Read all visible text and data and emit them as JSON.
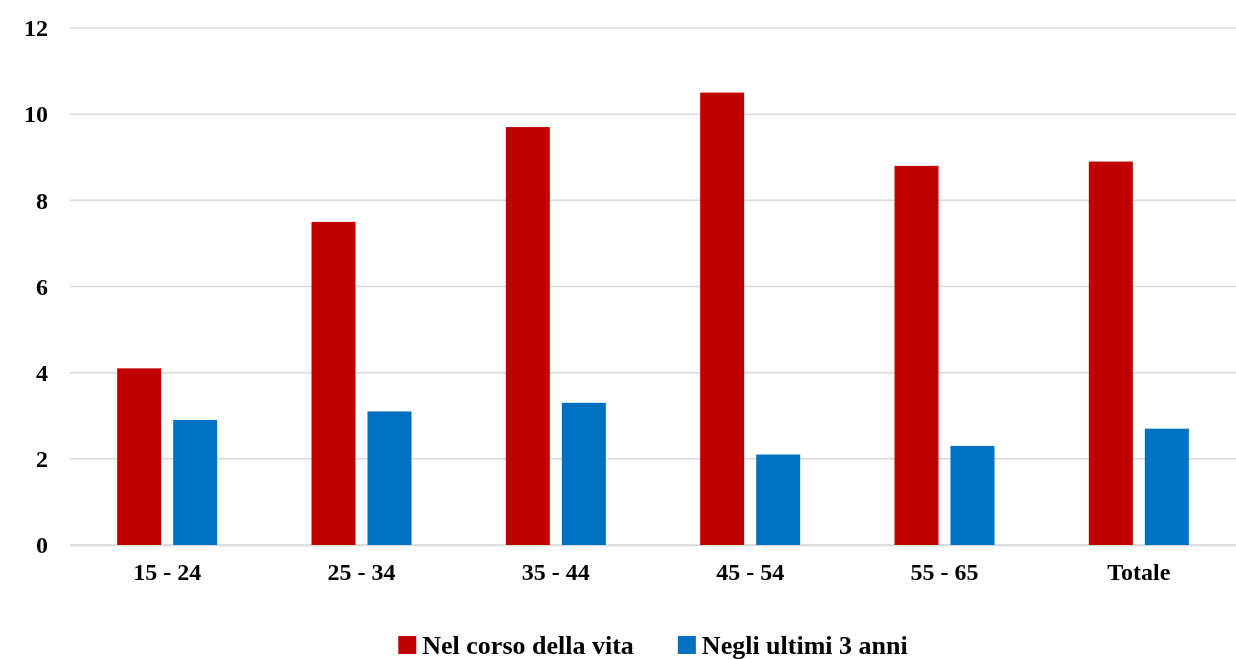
{
  "chart_data": {
    "type": "bar",
    "categories": [
      "15 - 24",
      "25 - 34",
      "35 - 44",
      "45 - 54",
      "55 - 65",
      "Totale"
    ],
    "series": [
      {
        "name": "Nel corso della vita",
        "color": "#c00000",
        "values": [
          4.1,
          7.5,
          9.7,
          10.5,
          8.8,
          8.9
        ]
      },
      {
        "name": "Negli ultimi 3 anni",
        "color": "#0070c0",
        "values": [
          2.9,
          3.1,
          3.3,
          2.1,
          2.3,
          2.7
        ]
      }
    ],
    "ylim": [
      0,
      12
    ],
    "yticks": [
      0,
      2,
      4,
      6,
      8,
      10,
      12
    ],
    "grid": "y",
    "legend": "bottom"
  }
}
